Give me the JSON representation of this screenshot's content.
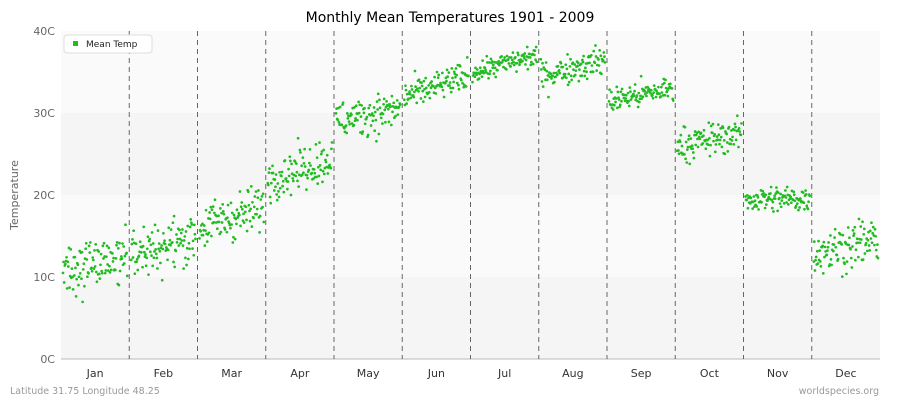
{
  "chart_data": {
    "type": "scatter",
    "title": "Monthly Mean Temperatures 1901 - 2009",
    "ylabel": "Temperature",
    "xlabel": "",
    "ylim": [
      0,
      40
    ],
    "y_ticks": [
      {
        "value": 0,
        "label": "0C"
      },
      {
        "value": 10,
        "label": "10C"
      },
      {
        "value": 20,
        "label": "20C"
      },
      {
        "value": 30,
        "label": "30C"
      },
      {
        "value": 40,
        "label": "40C"
      }
    ],
    "categories": [
      "Jan",
      "Feb",
      "Mar",
      "Apr",
      "May",
      "Jun",
      "Jul",
      "Aug",
      "Sep",
      "Oct",
      "Nov",
      "Dec"
    ],
    "grid": "alternating horizontal bands, dashed vertical month separators",
    "legend_position": "top-left",
    "series": [
      {
        "name": "Mean Temp",
        "color": "#22bb22",
        "points_per_month": 109,
        "monthly_summary": [
          {
            "month": "Jan",
            "start": 11.0,
            "end": 12.5,
            "spread": 1.6
          },
          {
            "month": "Feb",
            "start": 12.5,
            "end": 15.0,
            "spread": 1.5
          },
          {
            "month": "Mar",
            "start": 16.0,
            "end": 18.5,
            "spread": 1.4
          },
          {
            "month": "Apr",
            "start": 22.0,
            "end": 24.5,
            "spread": 1.3
          },
          {
            "month": "May",
            "start": 29.0,
            "end": 30.5,
            "spread": 1.2
          },
          {
            "month": "Jun",
            "start": 32.0,
            "end": 34.5,
            "spread": 0.9
          },
          {
            "month": "Jul",
            "start": 35.0,
            "end": 37.0,
            "spread": 0.7
          },
          {
            "month": "Aug",
            "start": 34.5,
            "end": 36.5,
            "spread": 0.9
          },
          {
            "month": "Sep",
            "start": 31.5,
            "end": 33.0,
            "spread": 0.8
          },
          {
            "month": "Oct",
            "start": 26.0,
            "end": 27.5,
            "spread": 1.0
          },
          {
            "month": "Nov",
            "start": 19.5,
            "end": 19.5,
            "spread": 0.8
          },
          {
            "month": "Dec",
            "start": 13.0,
            "end": 14.5,
            "spread": 1.4
          }
        ]
      }
    ]
  },
  "footer": {
    "location": "Latitude 31.75 Longitude 48.25",
    "source": "worldspecies.org"
  }
}
